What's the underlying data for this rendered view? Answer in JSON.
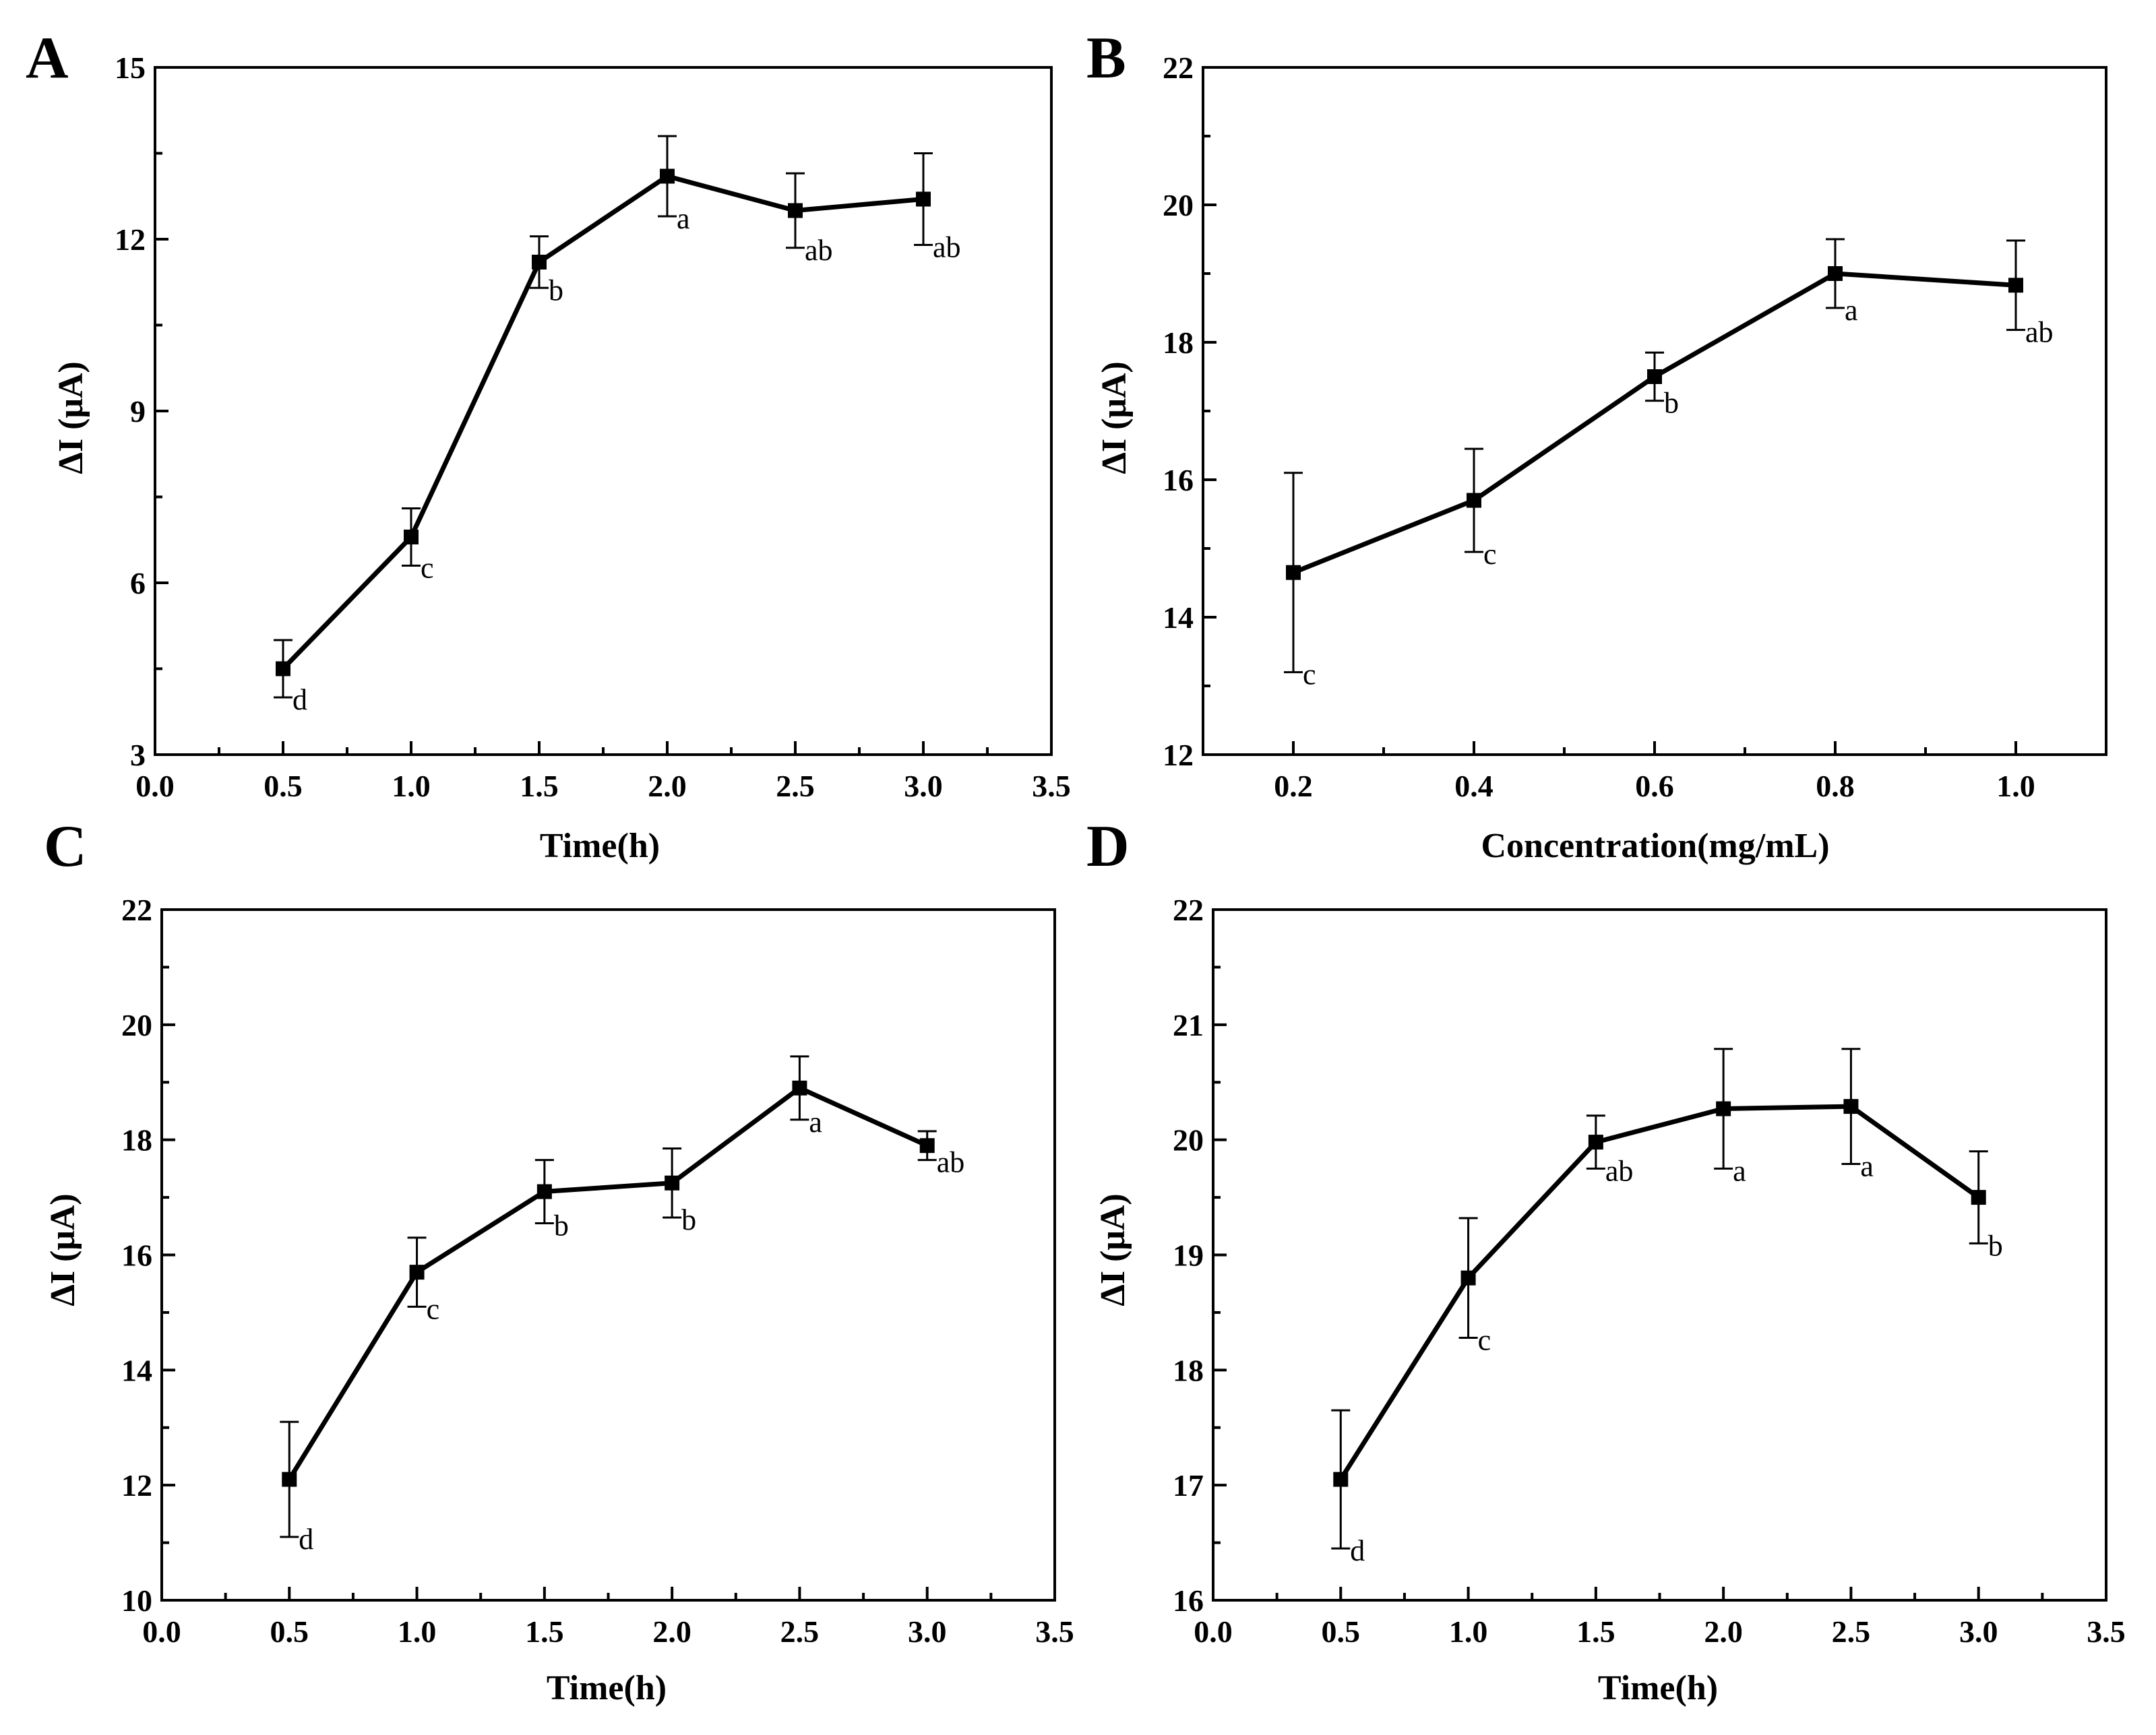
{
  "chart_data": [
    {
      "panel": "A",
      "type": "line",
      "xlabel": "Time(h)",
      "ylabel": "ΔI (μA)",
      "xlim": [
        0,
        3.5
      ],
      "ylim": [
        3,
        15
      ],
      "xticks": [
        "0.0",
        "0.5",
        "1.0",
        "1.5",
        "2.0",
        "2.5",
        "3.0",
        "3.5"
      ],
      "yticks": [
        "3",
        "6",
        "9",
        "12",
        "15"
      ],
      "x": [
        0.5,
        1.0,
        1.5,
        2.0,
        2.5,
        3.0
      ],
      "y": [
        4.5,
        6.8,
        11.6,
        13.1,
        12.5,
        12.7
      ],
      "err": [
        0.5,
        0.5,
        0.45,
        0.7,
        0.65,
        0.8
      ],
      "labels": [
        "d",
        "c",
        "b",
        "a",
        "ab",
        "ab"
      ]
    },
    {
      "panel": "B",
      "type": "line",
      "xlabel": "Concentration(mg/mL)",
      "ylabel": "ΔI (μA)",
      "xlim": [
        0.1,
        1.1
      ],
      "ylim": [
        12,
        22
      ],
      "xticks": [
        "0.2",
        "0.4",
        "0.6",
        "0.8",
        "1.0"
      ],
      "yticks": [
        "12",
        "14",
        "16",
        "18",
        "20",
        "22"
      ],
      "x": [
        0.2,
        0.4,
        0.6,
        0.8,
        1.0
      ],
      "y": [
        14.65,
        15.7,
        17.5,
        19.0,
        18.83
      ],
      "err": [
        1.45,
        0.75,
        0.35,
        0.5,
        0.65
      ],
      "labels": [
        "c",
        "c",
        "b",
        "a",
        "ab"
      ]
    },
    {
      "panel": "C",
      "type": "line",
      "xlabel": "Time(h)",
      "ylabel": "ΔI (μA)",
      "xlim": [
        0,
        3.5
      ],
      "ylim": [
        10,
        22
      ],
      "xticks": [
        "0.0",
        "0.5",
        "1.0",
        "1.5",
        "2.0",
        "2.5",
        "3.0",
        "3.5"
      ],
      "yticks": [
        "10",
        "12",
        "14",
        "16",
        "18",
        "20",
        "22"
      ],
      "x": [
        0.5,
        1.0,
        1.5,
        2.0,
        2.5,
        3.0
      ],
      "y": [
        12.1,
        15.7,
        17.1,
        17.25,
        18.9,
        17.9
      ],
      "err": [
        1.0,
        0.6,
        0.55,
        0.6,
        0.55,
        0.25
      ],
      "labels": [
        "d",
        "c",
        "b",
        "b",
        "a",
        "ab"
      ]
    },
    {
      "panel": "D",
      "type": "line",
      "xlabel": "Time(h)",
      "ylabel": "ΔI (μA)",
      "xlim": [
        0,
        3.5
      ],
      "ylim": [
        16,
        22
      ],
      "xticks": [
        "0.0",
        "0.5",
        "1.0",
        "1.5",
        "2.0",
        "2.5",
        "3.0",
        "3.5"
      ],
      "yticks": [
        "16",
        "17",
        "18",
        "19",
        "20",
        "21",
        "22"
      ],
      "x": [
        0.5,
        1.0,
        1.5,
        2.0,
        2.5,
        3.0
      ],
      "y": [
        17.05,
        18.8,
        19.98,
        20.27,
        20.29,
        19.5
      ],
      "err": [
        0.6,
        0.52,
        0.23,
        0.52,
        0.5,
        0.4
      ],
      "labels": [
        "d",
        "c",
        "ab",
        "a",
        "a",
        "b"
      ]
    }
  ]
}
